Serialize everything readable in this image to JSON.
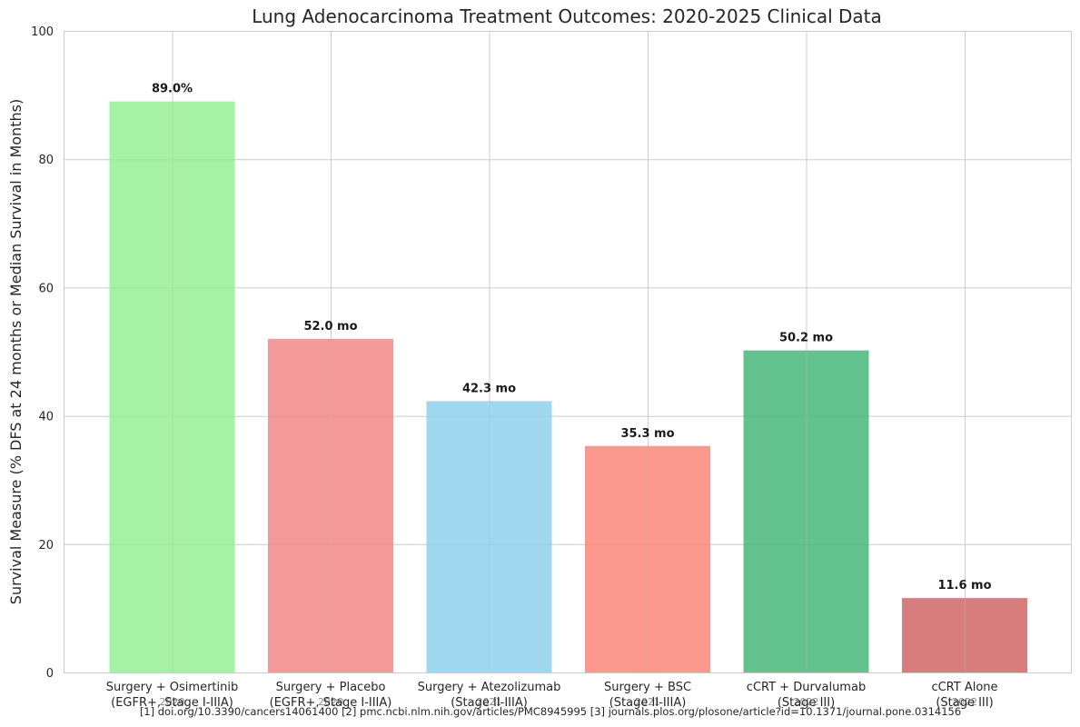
{
  "chart_data": {
    "type": "bar",
    "title": "Lung Adenocarcinoma Treatment Outcomes: 2020-2025 Clinical Data",
    "ylabel": "Survival Measure (% DFS at 24 months or Median Survival in Months)",
    "xlabel": "",
    "ylim": [
      0,
      100
    ],
    "yticks": [
      0,
      20,
      40,
      60,
      80,
      100
    ],
    "grid": true,
    "categories": [
      [
        "Surgery + Osimertinib",
        "(EGFR+, Stage I-IIIA)"
      ],
      [
        "Surgery + Placebo",
        "(EGFR+, Stage I-IIIA)"
      ],
      [
        "Surgery + Atezolizumab",
        "(Stage II-IIIA)"
      ],
      [
        "Surgery + BSC",
        "(Stage II-IIIA)"
      ],
      [
        "cCRT + Durvalumab",
        "(Stage III)"
      ],
      [
        "cCRT Alone",
        "(Stage III)"
      ]
    ],
    "years": [
      "2020",
      "2020",
      "2021",
      "2021",
      "2022",
      "2022"
    ],
    "values": [
      89.0,
      52.0,
      42.3,
      35.3,
      50.2,
      11.6
    ],
    "data_labels": [
      "89.0%",
      "52.0 mo",
      "42.3 mo",
      "35.3 mo",
      "50.2 mo",
      "11.6 mo"
    ],
    "colors": [
      "#90ee90",
      "#f08080",
      "#87ceeb",
      "#fa8072",
      "#3cb371",
      "#cd5c5c"
    ],
    "source": "[1] doi.org/10.3390/cancers14061400 [2] pmc.ncbi.nlm.nih.gov/articles/PMC8945995 [3] journals.plos.org/plosone/article?id=10.1371/journal.pone.0314156"
  }
}
